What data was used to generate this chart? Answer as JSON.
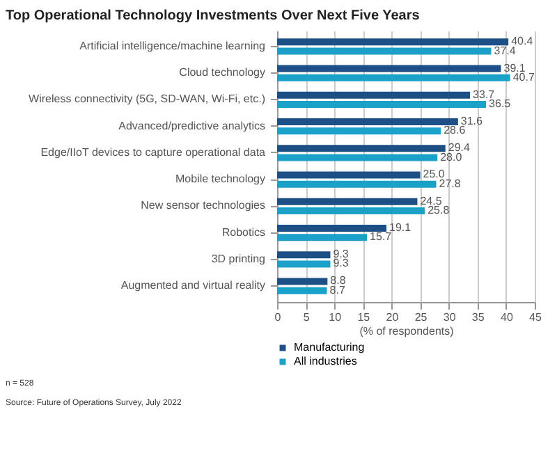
{
  "chart_data": {
    "type": "bar",
    "orientation": "horizontal",
    "title": "Top Operational Technology Investments Over Next Five Years",
    "categories": [
      "Artificial intelligence/machine learning",
      "Cloud technology",
      "Wireless connectivity (5G, SD-WAN, Wi-Fi, etc.)",
      "Advanced/predictive analytics",
      "Edge/IIoT devices to capture operational data",
      "Mobile technology",
      "New sensor technologies",
      "Robotics",
      "3D printing",
      "Augmented and virtual reality"
    ],
    "series": [
      {
        "name": "Manufacturing",
        "color": "#1c4f85",
        "values": [
          40.4,
          39.1,
          33.7,
          31.6,
          29.4,
          25.0,
          24.5,
          19.1,
          9.3,
          8.8
        ],
        "value_labels": [
          "40.4",
          "39.1",
          "33.7",
          "31.6",
          "29.4",
          "25.0",
          "24.5",
          "19.1",
          "9.3",
          "8.8"
        ]
      },
      {
        "name": "All industries",
        "color": "#1ba1c8",
        "values": [
          37.4,
          40.7,
          36.5,
          28.6,
          28.0,
          27.8,
          25.8,
          15.7,
          9.3,
          8.7
        ],
        "value_labels": [
          "37.4",
          "40.7",
          "36.5",
          "28.6",
          "28.0",
          "27.8",
          "25.8",
          "15.7",
          "9.3",
          "8.7"
        ]
      }
    ],
    "xlabel": "(% of respondents)",
    "xlim": [
      0,
      45
    ],
    "xticks": [
      0,
      5,
      10,
      15,
      20,
      25,
      30,
      35,
      40,
      45
    ],
    "grid": "x",
    "legend": "bottom",
    "annotations": [
      "n = 528",
      "Source: Future of Operations Survey, July 2022"
    ]
  }
}
